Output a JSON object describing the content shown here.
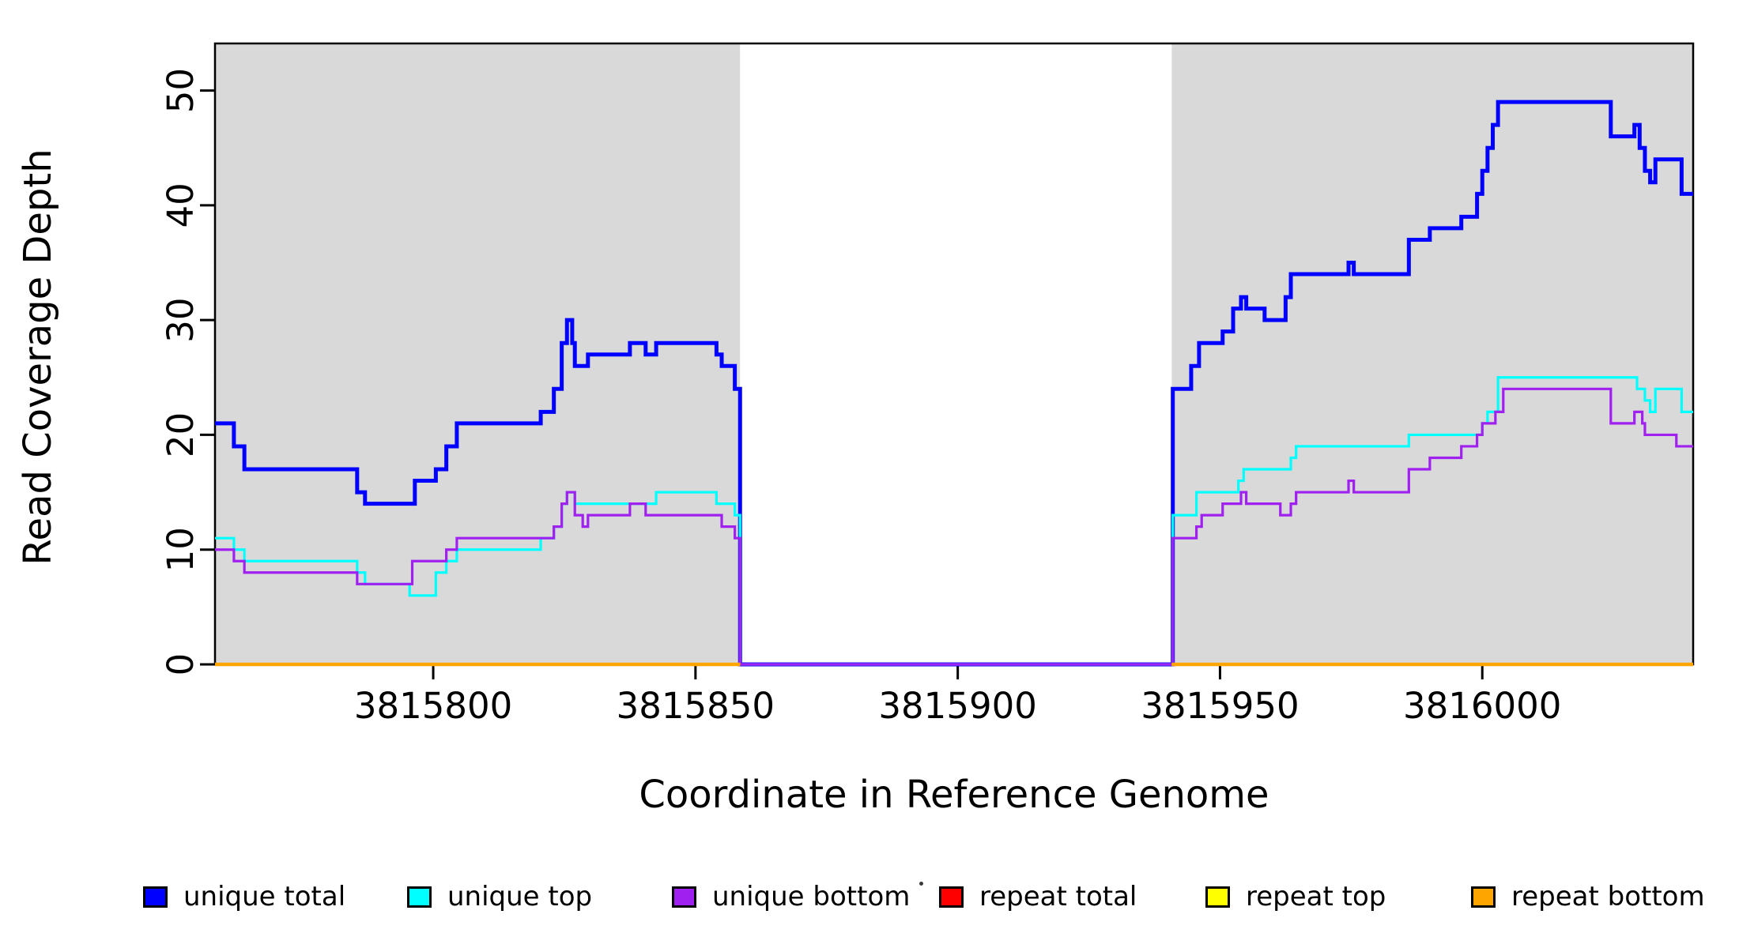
{
  "figure": {
    "x_axis_title": "Coordinate in Reference Genome",
    "y_axis_title": "Read Coverage Depth"
  },
  "legend": {
    "items": [
      {
        "label": "unique total",
        "color": "#0000FF"
      },
      {
        "label": "unique top",
        "color": "#00FFFF"
      },
      {
        "label": "unique bottom",
        "color": "#A020F0"
      },
      {
        "label": "repeat total",
        "color": "#FF0000"
      },
      {
        "label": "repeat top",
        "color": "#FFFF00"
      },
      {
        "label": "repeat bottom",
        "color": "#FFA500"
      }
    ],
    "stray_dot": "."
  },
  "chart_data": {
    "type": "line",
    "subtype": "step-coverage",
    "title": "",
    "xlabel": "Coordinate in Reference Genome",
    "ylabel": "Read Coverage Depth",
    "x_domain": [
      3815758.4,
      3816040.2
    ],
    "ylim": [
      0,
      54.1
    ],
    "x_ticks": [
      3815800,
      3815850,
      3815900,
      3815950,
      3816000
    ],
    "y_ticks": [
      0,
      10,
      20,
      30,
      40,
      50
    ],
    "grid": false,
    "legend_position": "bottom",
    "shading_color": "#D9D9D9",
    "shaded_regions": [
      {
        "x0": 3815758.4,
        "x1": 3815858.5
      },
      {
        "x0": 3815940.8,
        "x1": 3816040.2
      }
    ],
    "gap": {
      "x0": 3815858.5,
      "x1": 3815940.8,
      "coverage": 0
    },
    "series": [
      {
        "name": "unique total",
        "color": "#0000FF",
        "line_width": 5,
        "segments": [
          {
            "end": 3816040.2,
            "points": [
              [
                3815758.4,
                21
              ],
              [
                3815762,
                19
              ],
              [
                3815764,
                17
              ],
              [
                3815785.5,
                15
              ],
              [
                3815787,
                14
              ],
              [
                3815796.5,
                16
              ],
              [
                3815800.5,
                17
              ],
              [
                3815802.5,
                19
              ],
              [
                3815804.5,
                21
              ],
              [
                3815820.5,
                22
              ],
              [
                3815823,
                24
              ],
              [
                3815824.5,
                28
              ],
              [
                3815825.5,
                30
              ],
              [
                3815826.5,
                28
              ],
              [
                3815827,
                26
              ],
              [
                3815829.5,
                27
              ],
              [
                3815837.5,
                28
              ],
              [
                3815840.5,
                27
              ],
              [
                3815842.5,
                28
              ],
              [
                3815854,
                27
              ],
              [
                3815855,
                26
              ],
              [
                3815857.5,
                24
              ],
              [
                3815858.5,
                0
              ],
              [
                3815941,
                24
              ],
              [
                3815944.5,
                26
              ],
              [
                3815946,
                28
              ],
              [
                3815950.5,
                29
              ],
              [
                3815952.5,
                31
              ],
              [
                3815954,
                32
              ],
              [
                3815955,
                31
              ],
              [
                3815958.5,
                30
              ],
              [
                3815962.5,
                32
              ],
              [
                3815963.5,
                34
              ],
              [
                3815974.5,
                35
              ],
              [
                3815975.5,
                34
              ],
              [
                3815986,
                37
              ],
              [
                3815990,
                38
              ],
              [
                3815996,
                39
              ],
              [
                3815999,
                41
              ],
              [
                3816000,
                43
              ],
              [
                3816001,
                45
              ],
              [
                3816002,
                47
              ],
              [
                3816003,
                49
              ],
              [
                3816024.5,
                46
              ],
              [
                3816029,
                47
              ],
              [
                3816030,
                45
              ],
              [
                3816031,
                43
              ],
              [
                3816032,
                42
              ],
              [
                3816033,
                44
              ],
              [
                3816038,
                41
              ]
            ]
          }
        ]
      },
      {
        "name": "unique top",
        "color": "#00FFFF",
        "line_width": 3.2,
        "segments": [
          {
            "end": 3816040.2,
            "points": [
              [
                3815758.4,
                11
              ],
              [
                3815762,
                10
              ],
              [
                3815764,
                9
              ],
              [
                3815785.5,
                8
              ],
              [
                3815787,
                7
              ],
              [
                3815795.5,
                6
              ],
              [
                3815800.5,
                8
              ],
              [
                3815802.5,
                9
              ],
              [
                3815804.5,
                10
              ],
              [
                3815820.5,
                11
              ],
              [
                3815823,
                12
              ],
              [
                3815824.5,
                14
              ],
              [
                3815825.5,
                15
              ],
              [
                3815827,
                14
              ],
              [
                3815842.5,
                15
              ],
              [
                3815854,
                14
              ],
              [
                3815857.5,
                13
              ],
              [
                3815858.5,
                0
              ],
              [
                3815941,
                13
              ],
              [
                3815945.5,
                15
              ],
              [
                3815953.5,
                16
              ],
              [
                3815954.5,
                17
              ],
              [
                3815963.5,
                18
              ],
              [
                3815964.5,
                19
              ],
              [
                3815986,
                20
              ],
              [
                3816000,
                21
              ],
              [
                3816001,
                22
              ],
              [
                3816003,
                25
              ],
              [
                3816029.5,
                24
              ],
              [
                3816031,
                23
              ],
              [
                3816032,
                22
              ],
              [
                3816033,
                24
              ],
              [
                3816038,
                22
              ]
            ]
          }
        ]
      },
      {
        "name": "unique bottom",
        "color": "#A020F0",
        "line_width": 3.2,
        "segments": [
          {
            "end": 3816040.2,
            "points": [
              [
                3815758.4,
                10
              ],
              [
                3815762,
                9
              ],
              [
                3815764,
                8
              ],
              [
                3815785.5,
                7
              ],
              [
                3815796,
                9
              ],
              [
                3815802.5,
                10
              ],
              [
                3815804.5,
                11
              ],
              [
                3815823,
                12
              ],
              [
                3815824.5,
                14
              ],
              [
                3815825.5,
                15
              ],
              [
                3815827,
                13
              ],
              [
                3815828.5,
                12
              ],
              [
                3815829.5,
                13
              ],
              [
                3815837.5,
                14
              ],
              [
                3815840.5,
                13
              ],
              [
                3815855,
                12
              ],
              [
                3815857.5,
                11
              ],
              [
                3815858.5,
                0
              ],
              [
                3815941,
                11
              ],
              [
                3815945.5,
                12
              ],
              [
                3815946.5,
                13
              ],
              [
                3815950.5,
                14
              ],
              [
                3815954,
                15
              ],
              [
                3815955,
                14
              ],
              [
                3815961.5,
                13
              ],
              [
                3815963.5,
                14
              ],
              [
                3815964.5,
                15
              ],
              [
                3815974.5,
                16
              ],
              [
                3815975.5,
                15
              ],
              [
                3815986,
                17
              ],
              [
                3815990,
                18
              ],
              [
                3815996,
                19
              ],
              [
                3815999,
                20
              ],
              [
                3816000,
                21
              ],
              [
                3816002.5,
                22
              ],
              [
                3816004,
                24
              ],
              [
                3816024.5,
                21
              ],
              [
                3816029,
                22
              ],
              [
                3816030.5,
                21
              ],
              [
                3816031,
                20
              ],
              [
                3816037,
                19
              ]
            ]
          }
        ]
      },
      {
        "name": "repeat total",
        "color": "#FF0000",
        "line_width": 4,
        "segments": [
          {
            "end": 3815858.5,
            "points": [
              [
                3815758.4,
                0
              ]
            ]
          },
          {
            "end": 3816040.2,
            "points": [
              [
                3815940.8,
                0
              ]
            ]
          }
        ]
      },
      {
        "name": "repeat top",
        "color": "#FFFF00",
        "line_width": 4,
        "segments": [
          {
            "end": 3815858.5,
            "points": [
              [
                3815758.4,
                0
              ]
            ]
          },
          {
            "end": 3816040.2,
            "points": [
              [
                3815940.8,
                0
              ]
            ]
          }
        ]
      },
      {
        "name": "repeat bottom",
        "color": "#FFA500",
        "line_width": 4.5,
        "segments": [
          {
            "end": 3815858.5,
            "points": [
              [
                3815758.4,
                0
              ]
            ]
          },
          {
            "end": 3816040.2,
            "points": [
              [
                3815940.8,
                0
              ]
            ]
          }
        ]
      }
    ]
  }
}
